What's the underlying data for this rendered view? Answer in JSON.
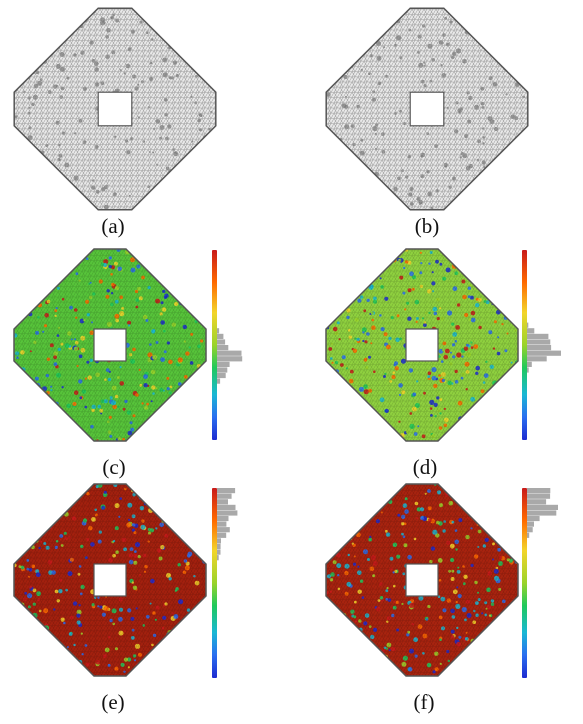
{
  "figure": {
    "panels": [
      {
        "id": "a",
        "caption": "(a)",
        "render": "mesh-wireframe",
        "colorbar": false
      },
      {
        "id": "b",
        "caption": "(b)",
        "render": "mesh-wireframe",
        "colorbar": false
      },
      {
        "id": "c",
        "caption": "(c)",
        "render": "colored-mesh",
        "fill": "#57c43a",
        "colorbar": true
      },
      {
        "id": "d",
        "caption": "(d)",
        "render": "colored-mesh",
        "fill": "#8fd13f",
        "colorbar": true
      },
      {
        "id": "e",
        "caption": "(e)",
        "render": "colored-mesh",
        "fill": "#a3200e",
        "colorbar": true
      },
      {
        "id": "f",
        "caption": "(f)",
        "render": "colored-mesh",
        "fill": "#a8230f",
        "colorbar": true
      }
    ],
    "colormap": [
      "#1d2bd0",
      "#2a6ef0",
      "#19b8d4",
      "#1fc95c",
      "#9ad32a",
      "#f3d52a",
      "#ff6a00",
      "#c81a1a"
    ],
    "colors": {
      "mesh_fill": "#e9e9e9",
      "mesh_line": "#9a9a9a",
      "mesh_outline": "#555555",
      "irregular_vertices": "#7d7d7d",
      "histogram": "#a9a9a9"
    }
  }
}
